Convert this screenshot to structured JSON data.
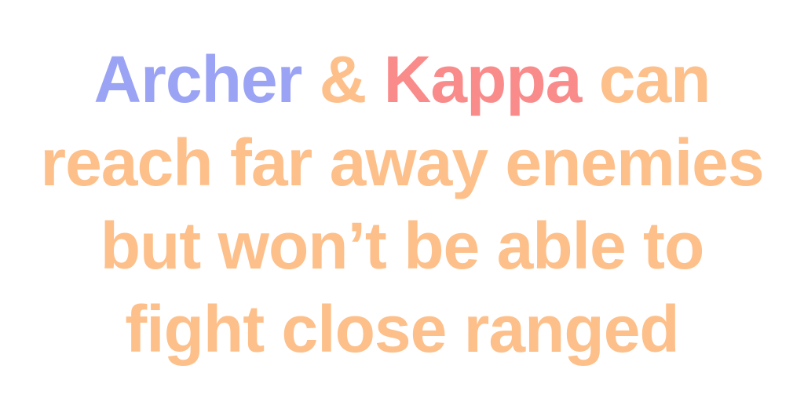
{
  "colors": {
    "archer": "#9ba3f5",
    "kappa": "#f98b8b",
    "text": "#fdc08b",
    "background": "#ffffff"
  },
  "caption": {
    "line1": {
      "archer": "Archer",
      "amp": "&",
      "kappa": "Kappa",
      "rest": "can"
    },
    "line2": "reach far away enemies",
    "line3": "but won’t be able to",
    "line4": "fight close ranged"
  }
}
